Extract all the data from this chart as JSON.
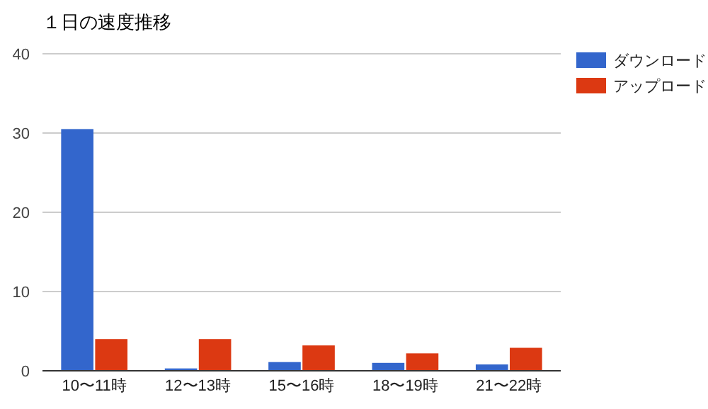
{
  "chart_data": {
    "type": "bar",
    "title": "１日の速度推移",
    "categories": [
      "10〜11時",
      "12〜13時",
      "15〜16時",
      "18〜19時",
      "21〜22時"
    ],
    "series": [
      {
        "name": "ダウンロード",
        "color": "#3366cc",
        "values": [
          30.5,
          0.3,
          1.1,
          1.0,
          0.8
        ]
      },
      {
        "name": "アップロード",
        "color": "#dc3912",
        "values": [
          4.0,
          4.0,
          3.2,
          2.2,
          2.9
        ]
      }
    ],
    "ylim": [
      0,
      40
    ],
    "yticks": [
      0,
      10,
      20,
      30,
      40
    ],
    "grid": "y",
    "legend": "top right"
  }
}
